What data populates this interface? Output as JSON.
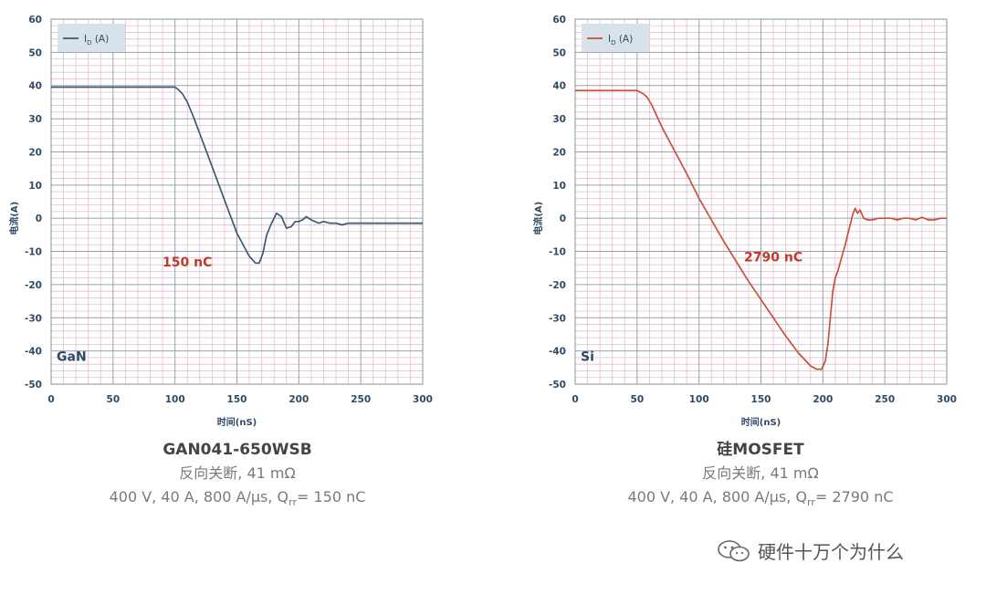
{
  "chart_data": [
    {
      "type": "line",
      "panel_label": "GaN",
      "annotation": "150 nC",
      "annotation_color": "#c0392b",
      "xlabel": "时间(nS)",
      "ylabel": "电流(A)",
      "xlim": [
        0,
        300
      ],
      "ylim": [
        -50,
        60
      ],
      "x_ticks": [
        "0",
        "50",
        "100",
        "150",
        "200",
        "250",
        "300"
      ],
      "y_ticks": [
        "60",
        "50",
        "40",
        "30",
        "20",
        "10",
        "0",
        "-10",
        "-20",
        "-30",
        "-40",
        "-50"
      ],
      "grid": true,
      "legend_position": "top-left",
      "series": [
        {
          "name": "ID (A)",
          "legend_main": "I",
          "legend_sub": "D",
          "legend_unit": "(A)",
          "color": "#3b5a78",
          "x": [
            0,
            100,
            103,
            106,
            110,
            115,
            120,
            130,
            140,
            150,
            160,
            165,
            168,
            171,
            174,
            178,
            182,
            186,
            190,
            194,
            197,
            200,
            203,
            206,
            210,
            213,
            216,
            220,
            225,
            230,
            235,
            240,
            245,
            250,
            255,
            260,
            265,
            270,
            275,
            280,
            285,
            290,
            295,
            300
          ],
          "y": [
            39.5,
            39.5,
            38.7,
            37.5,
            35,
            30.5,
            25.5,
            15.5,
            5.5,
            -4.5,
            -11.5,
            -13.5,
            -13.5,
            -10.5,
            -5,
            -1.5,
            1.5,
            0.5,
            -3,
            -2.5,
            -1,
            -1,
            -0.5,
            0.5,
            -0.5,
            -1,
            -1.5,
            -1,
            -1.5,
            -1.5,
            -2,
            -1.5,
            -1.5,
            -1.5,
            -1.5,
            -1.5,
            -1.5,
            -1.5,
            -1.5,
            -1.5,
            -1.5,
            -1.5,
            -1.5,
            -1.5
          ]
        }
      ]
    },
    {
      "type": "line",
      "panel_label": "Si",
      "annotation": "2790 nC",
      "annotation_color": "#c0392b",
      "xlabel": "时间(nS)",
      "ylabel": "电流(A)",
      "xlim": [
        0,
        300
      ],
      "ylim": [
        -50,
        60
      ],
      "x_ticks": [
        "0",
        "50",
        "100",
        "150",
        "200",
        "250",
        "300"
      ],
      "y_ticks": [
        "60",
        "50",
        "40",
        "30",
        "20",
        "10",
        "0",
        "-10",
        "-20",
        "-30",
        "-40",
        "-50"
      ],
      "grid": true,
      "legend_position": "top-left",
      "series": [
        {
          "name": "ID (A)",
          "legend_main": "I",
          "legend_sub": "D",
          "legend_unit": "(A)",
          "color": "#c9503a",
          "x": [
            0,
            50,
            55,
            58,
            62,
            70,
            80,
            90,
            100,
            110,
            120,
            130,
            140,
            150,
            160,
            170,
            180,
            190,
            195,
            199,
            202,
            204,
            206,
            208,
            210,
            212,
            215,
            218,
            221,
            224,
            226,
            228,
            230,
            233,
            236,
            240,
            245,
            250,
            255,
            260,
            265,
            270,
            275,
            280,
            285,
            290,
            295,
            300
          ],
          "y": [
            38.5,
            38.5,
            37.5,
            36.5,
            34,
            27.5,
            20.5,
            13.5,
            6,
            -0.5,
            -7,
            -13,
            -19,
            -24.5,
            -30,
            -35.5,
            -40.5,
            -44.5,
            -45.5,
            -45.5,
            -43,
            -38,
            -30,
            -22,
            -18,
            -16,
            -12,
            -8,
            -3.5,
            1,
            3,
            1.5,
            2.5,
            0,
            -0.5,
            -0.5,
            0,
            0,
            0,
            -0.5,
            0,
            0,
            -0.5,
            0.3,
            -0.5,
            -0.5,
            0,
            0
          ]
        }
      ]
    }
  ],
  "captions": [
    {
      "title": "GAN041-650WSB",
      "line1": "反向关断, 41 mΩ",
      "line2_pre": "400 V, 40 A, 800 A/μs, Q",
      "line2_sub": "rr",
      "line2_post": "= 150 nC"
    },
    {
      "title": "硅MOSFET",
      "line1": "反向关断, 41 mΩ",
      "line2_pre": "400 V, 40 A, 800 A/μs, Q",
      "line2_sub": "rr",
      "line2_post": "= 2790 nC"
    }
  ],
  "watermark": {
    "text": "硬件十万个为什么",
    "icon": "wechat-icon"
  }
}
